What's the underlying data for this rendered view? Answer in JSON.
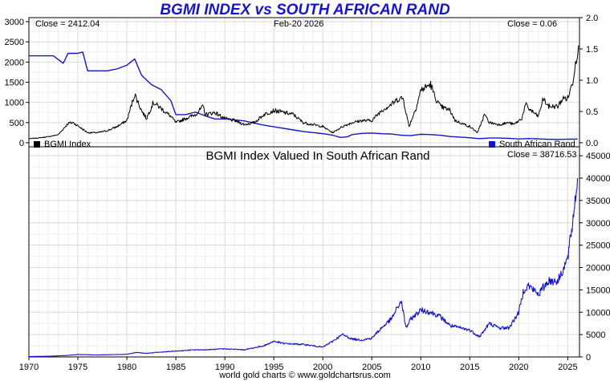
{
  "title": "BGMI INDEX vs SOUTH AFRICAN RAND",
  "footer": "world gold charts © www.goldchartsrus.com",
  "colors": {
    "title": "#1515cc",
    "bgmi": "#000000",
    "rand": "#1515cc",
    "grid": "#d9d9d9"
  },
  "top_panel": {
    "close_left": "Close = 2412.04",
    "date": "Feb-20  2026",
    "close_right": "Close = 0.06",
    "legend_left": "BGMI Index",
    "legend_right": "South African Rand"
  },
  "bottom_panel": {
    "subtitle": "BGMI Index Valued In South African Rand",
    "close": "Close = 38716.53"
  },
  "chart_data": [
    {
      "type": "line",
      "title": "BGMI INDEX vs SOUTH AFRICAN RAND",
      "x_ticks": [
        1970,
        1975,
        1980,
        1985,
        1990,
        1995,
        2000,
        2005,
        2010,
        2015,
        2020,
        2025
      ],
      "xlim": [
        1970,
        2026.2
      ],
      "y_left_ticks": [
        0,
        500,
        1000,
        1500,
        2000,
        2500,
        3000
      ],
      "y_left_lim": [
        -100,
        3100
      ],
      "y_right_ticks": [
        0.0,
        0.5,
        1.0,
        1.5,
        2.0
      ],
      "y_right_lim": [
        -0.0645,
        2.0
      ],
      "legend": [
        "BGMI Index",
        "South African Rand"
      ],
      "series": [
        {
          "name": "BGMI Index",
          "axis": "left",
          "x": [
            1970,
            1971,
            1972,
            1973,
            1974,
            1974.5,
            1975,
            1976,
            1977,
            1978,
            1979,
            1980,
            1980.8,
            1981.5,
            1982,
            1982.7,
            1983.5,
            1984.5,
            1985,
            1986,
            1987,
            1987.8,
            1988,
            1989,
            1990,
            1991,
            1992,
            1993,
            1994,
            1995,
            1996,
            1997,
            1998,
            1999,
            2000,
            2001,
            2002,
            2003,
            2004,
            2005,
            2006,
            2007,
            2007.8,
            2008.2,
            2008.8,
            2009.5,
            2010,
            2011,
            2011.5,
            2012,
            2013,
            2013.5,
            2014,
            2015,
            2015.8,
            2016.5,
            2017,
            2018,
            2019,
            2019.5,
            2020.3,
            2020.7,
            2021,
            2022,
            2022.5,
            2023,
            2024,
            2024.5,
            2025,
            2025.5,
            2025.8,
            2026.1
          ],
          "y": [
            100,
            120,
            150,
            200,
            480,
            500,
            420,
            250,
            250,
            300,
            400,
            550,
            1200,
            800,
            600,
            1000,
            850,
            650,
            500,
            600,
            700,
            900,
            700,
            750,
            600,
            550,
            450,
            500,
            700,
            800,
            750,
            700,
            500,
            450,
            400,
            250,
            400,
            500,
            550,
            550,
            800,
            950,
            1100,
            1100,
            400,
            850,
            1300,
            1450,
            1100,
            900,
            800,
            550,
            500,
            400,
            250,
            700,
            500,
            450,
            500,
            450,
            600,
            950,
            850,
            650,
            1100,
            900,
            900,
            1100,
            1100,
            1500,
            2000,
            2412
          ]
        },
        {
          "name": "South African Rand",
          "axis": "right",
          "x": [
            1970,
            1972.5,
            1973.5,
            1974,
            1974.5,
            1975,
            1975.5,
            1976,
            1978,
            1979,
            1980,
            1980.8,
            1981.5,
            1982.5,
            1983.5,
            1984.5,
            1985,
            1986,
            1987,
            1988,
            1989,
            1990,
            1992,
            1994,
            1996,
            1998,
            2000,
            2001,
            2001.8,
            2002.5,
            2003,
            2004,
            2005,
            2006,
            2007,
            2008,
            2009,
            2010,
            2011,
            2012,
            2013,
            2014,
            2015,
            2016,
            2017,
            2018,
            2019,
            2020,
            2021,
            2022,
            2023,
            2024,
            2025,
            2026
          ],
          "y": [
            1.39,
            1.39,
            1.27,
            1.43,
            1.43,
            1.43,
            1.45,
            1.15,
            1.15,
            1.18,
            1.24,
            1.34,
            1.08,
            0.93,
            0.85,
            0.67,
            0.45,
            0.45,
            0.49,
            0.43,
            0.38,
            0.38,
            0.35,
            0.28,
            0.23,
            0.18,
            0.145,
            0.12,
            0.085,
            0.095,
            0.13,
            0.15,
            0.155,
            0.145,
            0.14,
            0.12,
            0.115,
            0.135,
            0.13,
            0.12,
            0.1,
            0.09,
            0.08,
            0.066,
            0.075,
            0.075,
            0.07,
            0.06,
            0.068,
            0.062,
            0.055,
            0.054,
            0.056,
            0.06
          ]
        }
      ]
    },
    {
      "type": "line",
      "title": "BGMI Index Valued In South African Rand",
      "x_ticks": [
        1970,
        1975,
        1980,
        1985,
        1990,
        1995,
        2000,
        2005,
        2010,
        2015,
        2020,
        2025
      ],
      "xlim": [
        1970,
        2026.2
      ],
      "y_ticks": [
        0,
        5000,
        10000,
        15000,
        20000,
        25000,
        30000,
        35000,
        40000,
        45000
      ],
      "ylim": [
        0,
        47000
      ],
      "series": [
        {
          "name": "BGMI Index in ZAR",
          "x": [
            1970,
            1972,
            1974,
            1975,
            1977,
            1980,
            1981,
            1982,
            1983,
            1985,
            1987,
            1988,
            1990,
            1992,
            1994,
            1995,
            1996,
            1998,
            1999,
            2000,
            2001,
            2002,
            2003,
            2004,
            2005,
            2006,
            2007,
            2008,
            2008.5,
            2009,
            2010,
            2011,
            2012,
            2013,
            2014,
            2015,
            2016,
            2017,
            2018,
            2019,
            2020,
            2020.5,
            2021,
            2022,
            2023,
            2024,
            2025,
            2025.5,
            2026
          ],
          "y": [
            100,
            150,
            350,
            550,
            450,
            600,
            1000,
            800,
            1000,
            1300,
            1600,
            1600,
            1800,
            1600,
            2500,
            3500,
            3000,
            2800,
            2500,
            2200,
            3500,
            5000,
            4000,
            3800,
            4200,
            6500,
            8500,
            12500,
            6500,
            8500,
            10500,
            10000,
            9000,
            7000,
            6500,
            6000,
            4500,
            7500,
            6500,
            6500,
            10000,
            15000,
            16000,
            14000,
            17000,
            17000,
            22000,
            30000,
            40000
          ]
        }
      ]
    }
  ]
}
